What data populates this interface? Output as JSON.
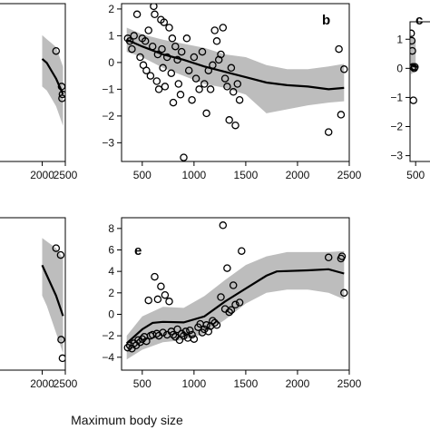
{
  "figure": {
    "xlabel": "Maximum body size"
  },
  "chart_data": [
    {
      "panel": "partial-top-left",
      "type": "scatter",
      "label": "",
      "xlim": [
        300,
        2500
      ],
      "ylim": [
        0,
        2
      ],
      "x_ticks": [
        2000,
        2500
      ],
      "y_ticks": [],
      "band_x": [
        2000,
        2100,
        2200,
        2300,
        2450
      ],
      "band_lo": [
        0.95,
        0.9,
        0.8,
        0.7,
        0.45
      ],
      "band_hi": [
        1.6,
        1.55,
        1.5,
        1.45,
        1.2
      ],
      "trend_x": [
        2000,
        2100,
        2200,
        2300,
        2450
      ],
      "trend_y": [
        1.3,
        1.25,
        1.15,
        1.05,
        0.85
      ],
      "points": [
        [
          2300,
          1.4
        ],
        [
          2420,
          0.95
        ],
        [
          2440,
          0.85
        ],
        [
          2430,
          0.8
        ]
      ]
    },
    {
      "panel": "b",
      "type": "scatter",
      "label": "b",
      "xlim": [
        300,
        2500
      ],
      "ylim": [
        -3.7,
        2.2
      ],
      "x_ticks": [
        500,
        1000,
        1500,
        2000,
        2500
      ],
      "y_ticks": [
        -3,
        -2,
        -1,
        0,
        1,
        2
      ],
      "band_x": [
        350,
        500,
        700,
        900,
        1100,
        1300,
        1500,
        1700,
        1900,
        2100,
        2300,
        2450
      ],
      "band_lo": [
        0.4,
        0.2,
        -0.2,
        -0.5,
        -0.8,
        -0.95,
        -1.2,
        -1.9,
        -1.75,
        -1.6,
        -1.5,
        -1.45
      ],
      "band_hi": [
        1.3,
        1.05,
        0.85,
        0.7,
        0.55,
        0.3,
        0.2,
        -0.1,
        -0.25,
        -0.25,
        -0.15,
        -0.05
      ],
      "trend_x": [
        350,
        500,
        700,
        900,
        1100,
        1300,
        1500,
        1700,
        1900,
        2100,
        2300,
        2450
      ],
      "trend_y": [
        0.85,
        0.6,
        0.3,
        0.1,
        -0.15,
        -0.35,
        -0.55,
        -0.75,
        -0.85,
        -0.9,
        -1.0,
        -0.95
      ],
      "points": [
        [
          360,
          0.9
        ],
        [
          380,
          0.8
        ],
        [
          400,
          0.5
        ],
        [
          420,
          1.0
        ],
        [
          450,
          1.8
        ],
        [
          480,
          0.2
        ],
        [
          500,
          0.9
        ],
        [
          510,
          -0.1
        ],
        [
          530,
          0.8
        ],
        [
          540,
          -0.3
        ],
        [
          560,
          1.2
        ],
        [
          580,
          -0.5
        ],
        [
          600,
          0.6
        ],
        [
          610,
          2.1
        ],
        [
          620,
          1.8
        ],
        [
          640,
          -0.7
        ],
        [
          650,
          0.3
        ],
        [
          660,
          -1.0
        ],
        [
          680,
          1.6
        ],
        [
          690,
          0.5
        ],
        [
          700,
          -0.2
        ],
        [
          710,
          1.5
        ],
        [
          720,
          -0.9
        ],
        [
          740,
          0.2
        ],
        [
          760,
          1.3
        ],
        [
          780,
          -0.4
        ],
        [
          790,
          0.9
        ],
        [
          800,
          -1.5
        ],
        [
          820,
          0.6
        ],
        [
          840,
          0.1
        ],
        [
          850,
          -0.8
        ],
        [
          870,
          -1.2
        ],
        [
          880,
          0.4
        ],
        [
          900,
          -3.55
        ],
        [
          930,
          0.9
        ],
        [
          950,
          -0.3
        ],
        [
          980,
          -1.4
        ],
        [
          1000,
          0.2
        ],
        [
          1020,
          -0.6
        ],
        [
          1050,
          -1.0
        ],
        [
          1080,
          0.4
        ],
        [
          1100,
          -0.8
        ],
        [
          1120,
          -1.9
        ],
        [
          1140,
          -0.3
        ],
        [
          1160,
          -1.0
        ],
        [
          1180,
          -0.1
        ],
        [
          1200,
          1.2
        ],
        [
          1220,
          0.8
        ],
        [
          1240,
          0.1
        ],
        [
          1260,
          0.3
        ],
        [
          1280,
          1.3
        ],
        [
          1300,
          -0.6
        ],
        [
          1320,
          -0.9
        ],
        [
          1340,
          -2.15
        ],
        [
          1360,
          -0.2
        ],
        [
          1380,
          -1.1
        ],
        [
          1400,
          -2.35
        ],
        [
          1420,
          -0.8
        ],
        [
          1440,
          -1.4
        ],
        [
          2300,
          -2.6
        ],
        [
          2400,
          0.5
        ],
        [
          2420,
          -1.95
        ],
        [
          2450,
          -0.25
        ]
      ]
    },
    {
      "panel": "c",
      "type": "scatter",
      "label": "c",
      "xlim": [
        300,
        2500
      ],
      "ylim": [
        -3.2,
        1.6
      ],
      "x_ticks": [
        500
      ],
      "y_ticks": [
        -3,
        -2,
        -1,
        0,
        1
      ],
      "band_x": [
        330,
        420,
        500
      ],
      "band_lo": [
        -0.2,
        -0.15,
        -0.1
      ],
      "band_hi": [
        1.2,
        1.0,
        0.9
      ],
      "trend_x": [
        330,
        420,
        500
      ],
      "trend_y": [
        0.1,
        0.08,
        0.05
      ],
      "points": [
        [
          340,
          1.2
        ],
        [
          360,
          0.95
        ],
        [
          380,
          0.6
        ],
        [
          400,
          0.05
        ],
        [
          420,
          -1.1
        ],
        [
          450,
          0.0
        ],
        [
          470,
          0.05
        ]
      ]
    },
    {
      "panel": "partial-bottom-left",
      "type": "scatter",
      "label": "",
      "xlim": [
        300,
        2500
      ],
      "ylim": [
        -3,
        6
      ],
      "x_ticks": [
        2000,
        2500
      ],
      "y_ticks": [],
      "band_x": [
        2000,
        2100,
        2200,
        2300,
        2450
      ],
      "band_lo": [
        1.4,
        0.8,
        0.0,
        -0.8,
        -2.0
      ],
      "band_hi": [
        4.8,
        4.6,
        4.4,
        4.2,
        3.6
      ],
      "trend_x": [
        2000,
        2100,
        2200,
        2300,
        2450
      ],
      "trend_y": [
        3.2,
        2.6,
        2.0,
        1.4,
        0.2
      ],
      "points": [
        [
          2300,
          4.2
        ],
        [
          2400,
          3.8
        ],
        [
          2410,
          -1.2
        ],
        [
          2440,
          -2.3
        ]
      ]
    },
    {
      "panel": "e",
      "type": "scatter",
      "label": "e",
      "xlim": [
        300,
        2500
      ],
      "ylim": [
        -5.2,
        9
      ],
      "x_ticks": [
        500,
        1000,
        1500,
        2000,
        2500
      ],
      "y_ticks": [
        -4,
        -2,
        0,
        2,
        4,
        6,
        8
      ],
      "band_x": [
        350,
        500,
        700,
        900,
        1100,
        1300,
        1500,
        1700,
        1900,
        2100,
        2300,
        2450
      ],
      "band_lo": [
        -4.2,
        -3.3,
        -2.6,
        -2.4,
        -1.8,
        -0.5,
        1.0,
        2.0,
        2.3,
        2.3,
        2.0,
        1.4
      ],
      "band_hi": [
        -2.0,
        -0.2,
        0.7,
        0.6,
        1.7,
        3.2,
        4.6,
        5.4,
        5.8,
        5.8,
        5.8,
        5.9
      ],
      "trend_x": [
        350,
        500,
        600,
        700,
        900,
        1100,
        1300,
        1500,
        1700,
        1800,
        2100,
        2300,
        2450
      ],
      "trend_y": [
        -2.7,
        -1.4,
        -0.8,
        -0.7,
        -0.75,
        -0.2,
        1.2,
        2.4,
        3.6,
        4.0,
        4.1,
        4.2,
        3.8
      ],
      "points": [
        [
          360,
          -3.1
        ],
        [
          380,
          -2.9
        ],
        [
          400,
          -3.2
        ],
        [
          420,
          -2.7
        ],
        [
          440,
          -2.9
        ],
        [
          460,
          -2.4
        ],
        [
          480,
          -2.6
        ],
        [
          500,
          -2.3
        ],
        [
          520,
          -2.1
        ],
        [
          540,
          -2.5
        ],
        [
          560,
          1.3
        ],
        [
          580,
          -2.0
        ],
        [
          600,
          -1.9
        ],
        [
          620,
          3.5
        ],
        [
          640,
          -1.8
        ],
        [
          650,
          1.4
        ],
        [
          660,
          -2.0
        ],
        [
          680,
          2.6
        ],
        [
          700,
          -1.7
        ],
        [
          720,
          1.8
        ],
        [
          740,
          -1.9
        ],
        [
          760,
          1.2
        ],
        [
          780,
          -1.6
        ],
        [
          800,
          -1.9
        ],
        [
          820,
          -2.1
        ],
        [
          840,
          -1.4
        ],
        [
          860,
          -2.4
        ],
        [
          880,
          -1.8
        ],
        [
          900,
          -2.0
        ],
        [
          920,
          -1.6
        ],
        [
          940,
          -2.2
        ],
        [
          960,
          -1.5
        ],
        [
          980,
          -1.9
        ],
        [
          1000,
          -2.3
        ],
        [
          1040,
          -1.2
        ],
        [
          1060,
          -0.9
        ],
        [
          1080,
          -1.7
        ],
        [
          1100,
          -1.4
        ],
        [
          1120,
          -1.0
        ],
        [
          1140,
          -1.6
        ],
        [
          1160,
          -1.1
        ],
        [
          1180,
          -0.6
        ],
        [
          1200,
          -0.8
        ],
        [
          1220,
          -1.0
        ],
        [
          1260,
          1.6
        ],
        [
          1280,
          8.3
        ],
        [
          1300,
          0.5
        ],
        [
          1320,
          4.3
        ],
        [
          1340,
          0.2
        ],
        [
          1360,
          0.4
        ],
        [
          1380,
          2.7
        ],
        [
          1400,
          0.9
        ],
        [
          1440,
          1.1
        ],
        [
          1460,
          5.9
        ],
        [
          2300,
          5.3
        ],
        [
          2420,
          5.2
        ],
        [
          2430,
          5.4
        ],
        [
          2450,
          2.0
        ]
      ]
    }
  ]
}
